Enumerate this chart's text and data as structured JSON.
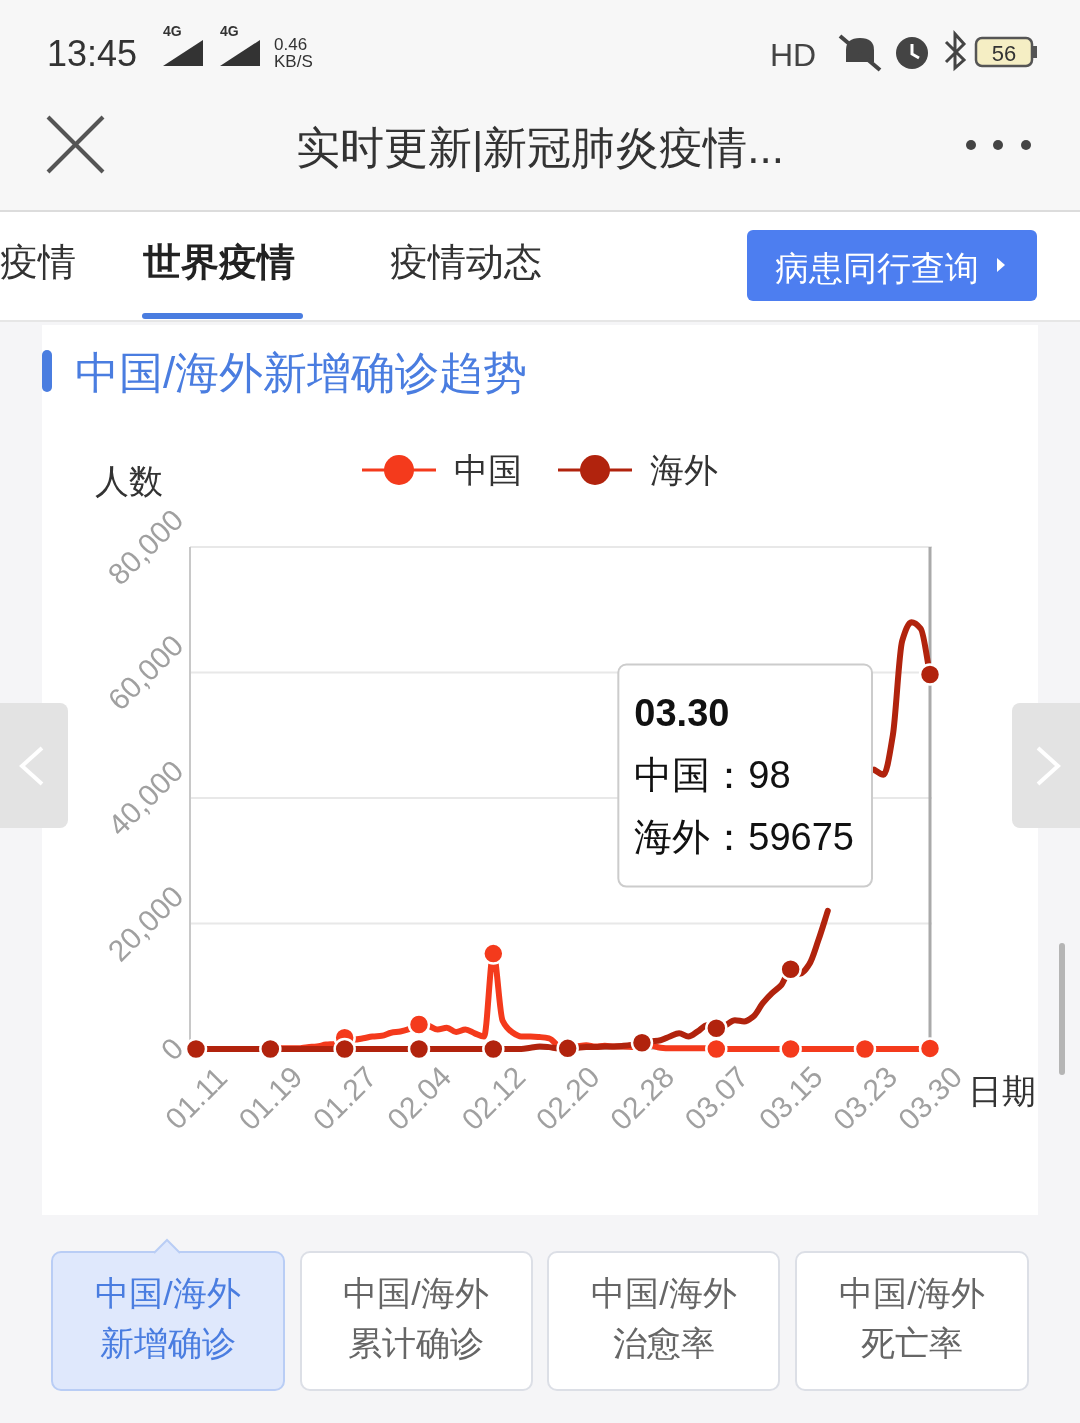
{
  "chart_data": {
    "type": "line",
    "title": "中国/海外新增确诊趋势",
    "xlabel": "日期",
    "ylabel": "人数",
    "categories": [
      "01.11",
      null,
      null,
      null,
      null,
      null,
      null,
      null,
      "01.19",
      null,
      null,
      null,
      null,
      null,
      null,
      null,
      "01.27",
      null,
      null,
      null,
      null,
      null,
      null,
      null,
      "02.04",
      null,
      null,
      null,
      null,
      null,
      null,
      null,
      "02.12",
      null,
      null,
      null,
      null,
      null,
      null,
      null,
      "02.20",
      null,
      null,
      null,
      null,
      null,
      null,
      null,
      "02.28",
      null,
      null,
      null,
      null,
      null,
      null,
      null,
      "03.07",
      null,
      null,
      null,
      null,
      null,
      null,
      null,
      "03.15",
      null,
      null,
      null,
      null,
      null,
      null,
      null,
      "03.23",
      null,
      null,
      null,
      null,
      null,
      null,
      "03.30"
    ],
    "series": [
      {
        "name": "中国",
        "color": "#f43a1c",
        "values": [
          null,
          null,
          null,
          null,
          null,
          null,
          null,
          null,
          0,
          100,
          100,
          100,
          300,
          400,
          700,
          800,
          1800,
          1500,
          1700,
          2000,
          2100,
          2600,
          2800,
          3200,
          3900,
          3700,
          3100,
          3400,
          2700,
          3100,
          2500,
          2000,
          15200,
          4500,
          2700,
          2000,
          2000,
          1900,
          1700,
          400,
          null,
          400,
          600,
          400,
          500,
          400,
          400,
          300,
          null,
          600,
          200,
          100,
          100,
          100,
          100,
          100,
          0,
          0,
          0,
          0,
          0,
          0,
          0,
          0,
          0,
          0,
          0,
          0,
          0,
          0,
          0,
          0,
          0,
          0,
          0,
          0,
          0,
          0,
          0,
          98
        ]
      },
      {
        "name": "海外",
        "color": "#b1230d",
        "values": [
          0,
          0,
          0,
          0,
          0,
          0,
          0,
          0,
          0,
          0,
          0,
          0,
          0,
          0,
          0,
          0,
          0,
          0,
          0,
          0,
          0,
          0,
          0,
          0,
          0,
          0,
          0,
          0,
          0,
          0,
          0,
          0,
          0,
          0,
          0,
          0,
          200,
          400,
          300,
          100,
          100,
          200,
          300,
          300,
          400,
          400,
          500,
          700,
          1000,
          1200,
          1400,
          2000,
          2500,
          2000,
          2800,
          3800,
          3300,
          3800,
          4600,
          4400,
          5200,
          7300,
          8900,
          10200,
          12700,
          12000,
          13500,
          17400,
          22000,
          null,
          null,
          null,
          null,
          44500,
          43700,
          50000,
          65000,
          68000,
          67000,
          59675
        ]
      },
      {
        "type": "scatter",
        "marker": "circle",
        "color": "#f43a1c",
        "x": [
          "01.27",
          "02.04",
          "02.12",
          "03.07",
          "03.15",
          "03.23",
          "03.30"
        ],
        "values": [
          1800,
          3900,
          15200,
          0,
          0,
          0,
          98
        ]
      },
      {
        "type": "scatter",
        "marker": "circle",
        "color": "#b1230d",
        "x": [
          "01.11",
          "01.19",
          "01.27",
          "02.04",
          "02.12",
          "02.20",
          "02.28",
          "03.07",
          "03.15",
          "03.30"
        ],
        "values": [
          0,
          0,
          0,
          0,
          0,
          100,
          1000,
          3300,
          12700,
          59675
        ]
      }
    ],
    "ylim": [
      0,
      80000
    ],
    "yticks": [
      0,
      {
        "value": 20000,
        "label": "20,000"
      },
      {
        "value": 40000,
        "label": "40,000"
      },
      {
        "value": 60000,
        "label": "60,000"
      },
      {
        "value": 80000,
        "label": "80,000"
      }
    ],
    "grid": "y",
    "legend": "top",
    "line_style": "solid",
    "ref_lines": [
      {
        "axis": "x",
        "value": "03.30",
        "color": "#aaaaaa"
      }
    ],
    "annotations": [
      "13:45",
      "4G",
      "4G",
      "0.46\nKB/S",
      "HD",
      "56",
      "实时更新|新冠肺炎疫情...",
      "疫情",
      "世界疫情",
      "疫情动态",
      "病患同行查询",
      "中国/海外",
      "新增确诊",
      "中国/海外",
      "累计确诊",
      "中国/海外",
      "治愈率",
      "中国/海外",
      "死亡率",
      {
        "text": "03.30\n中国：98\n海外：59675",
        "x": "03.30",
        "y": 59675
      }
    ]
  }
}
